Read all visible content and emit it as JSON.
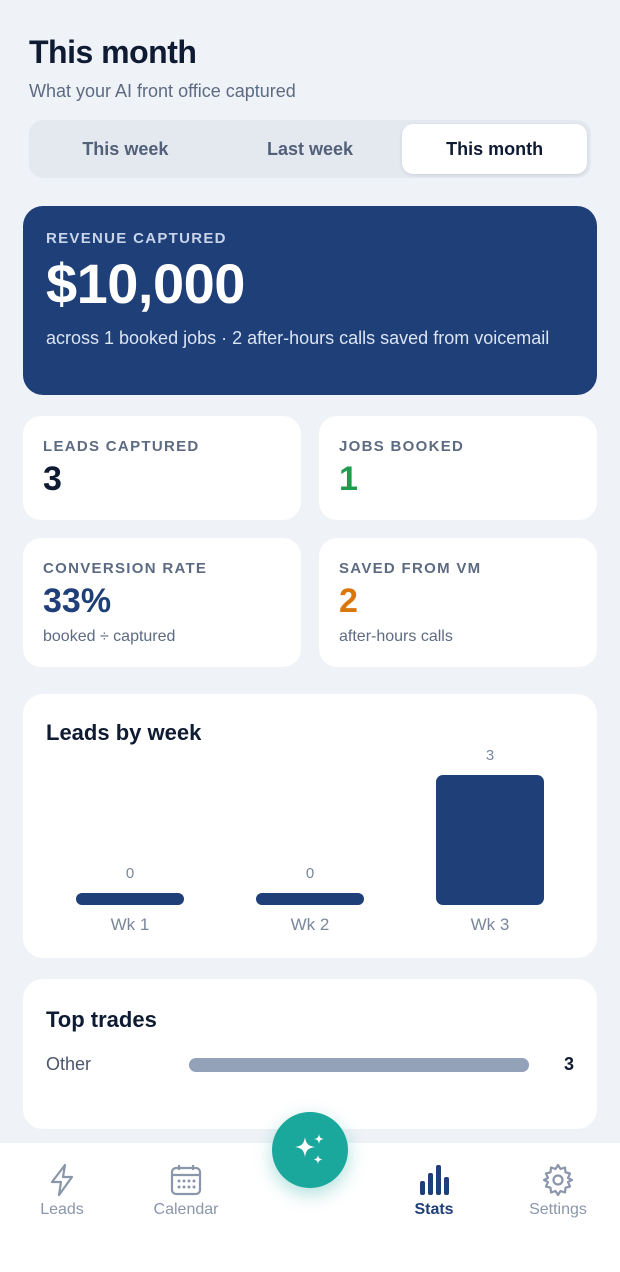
{
  "header": {
    "title": "This month",
    "subtitle": "What your AI front office captured"
  },
  "period_tabs": [
    {
      "label": "This week",
      "active": false
    },
    {
      "label": "Last week",
      "active": false
    },
    {
      "label": "This month",
      "active": true
    }
  ],
  "revenue": {
    "label": "REVENUE CAPTURED",
    "value": "$10,000",
    "subtitle": "across 1 booked jobs · 2 after-hours calls saved from voicemail"
  },
  "stats": {
    "leads": {
      "label": "LEADS CAPTURED",
      "value": "3"
    },
    "jobs": {
      "label": "JOBS BOOKED",
      "value": "1"
    },
    "conversion": {
      "label": "CONVERSION RATE",
      "value": "33%",
      "sub": "booked ÷ captured"
    },
    "saved": {
      "label": "SAVED FROM VM",
      "value": "2",
      "sub": "after-hours calls"
    }
  },
  "leads_chart": {
    "title": "Leads by week",
    "chart_data": {
      "type": "bar",
      "categories": [
        "Wk 1",
        "Wk 2",
        "Wk 3"
      ],
      "values": [
        0,
        0,
        3
      ],
      "title": "Leads by week"
    }
  },
  "top_trades": {
    "title": "Top trades",
    "items": [
      {
        "name": "Other",
        "count": "3",
        "share": 1.0
      }
    ]
  },
  "nav": {
    "items": [
      {
        "label": "Leads",
        "icon": "bolt-icon",
        "active": false
      },
      {
        "label": "Calendar",
        "icon": "calendar-icon",
        "active": false
      },
      {
        "label": "Stats",
        "icon": "bar-chart-icon",
        "active": true
      },
      {
        "label": "Settings",
        "icon": "gear-icon",
        "active": false
      }
    ],
    "fab_icon": "sparkles-icon"
  },
  "colors": {
    "primary": "#1f3f78",
    "success": "#1f9d4d",
    "warning": "#d9770b",
    "accent": "#1aa79c"
  }
}
